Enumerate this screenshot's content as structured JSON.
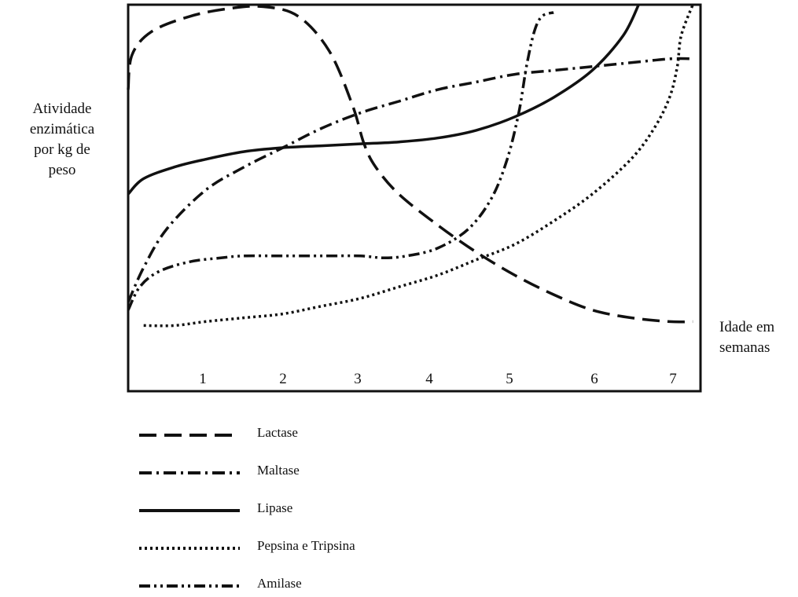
{
  "chart_data": {
    "type": "line",
    "ylabel_lines": [
      "Atividade",
      "enzimática",
      "por kg de",
      "peso"
    ],
    "xlabel_lines": [
      "Idade em",
      "semanas"
    ],
    "x_ticks": [
      "1",
      "2",
      "3",
      "4",
      "5",
      "6",
      "7"
    ],
    "xlim": [
      0,
      7.4
    ],
    "ylim": [
      0,
      1
    ],
    "legend_position": "bottom",
    "series": [
      {
        "name": "Lactase",
        "dash": "22,10",
        "points": [
          [
            0,
            0.78
          ],
          [
            0.05,
            0.87
          ],
          [
            0.3,
            0.93
          ],
          [
            0.8,
            0.97
          ],
          [
            1.3,
            0.99
          ],
          [
            1.75,
            0.995
          ],
          [
            2.2,
            0.97
          ],
          [
            2.6,
            0.88
          ],
          [
            2.9,
            0.74
          ],
          [
            3.05,
            0.64
          ],
          [
            3.2,
            0.58
          ],
          [
            3.5,
            0.51
          ],
          [
            4,
            0.43
          ],
          [
            4.5,
            0.36
          ],
          [
            5,
            0.3
          ],
          [
            5.5,
            0.25
          ],
          [
            6,
            0.21
          ],
          [
            6.5,
            0.19
          ],
          [
            7,
            0.18
          ],
          [
            7.3,
            0.18
          ]
        ]
      },
      {
        "name": "Maltase",
        "dash": "16,6,3,6",
        "points": [
          [
            0,
            0.23
          ],
          [
            0.2,
            0.32
          ],
          [
            0.5,
            0.42
          ],
          [
            1,
            0.52
          ],
          [
            1.5,
            0.58
          ],
          [
            2,
            0.63
          ],
          [
            2.5,
            0.68
          ],
          [
            3,
            0.72
          ],
          [
            3.5,
            0.75
          ],
          [
            4,
            0.78
          ],
          [
            4.5,
            0.8
          ],
          [
            5,
            0.82
          ],
          [
            5.5,
            0.83
          ],
          [
            6,
            0.84
          ],
          [
            6.5,
            0.85
          ],
          [
            7,
            0.86
          ],
          [
            7.3,
            0.86
          ]
        ]
      },
      {
        "name": "Lipase",
        "dash": "",
        "points": [
          [
            0,
            0.51
          ],
          [
            0.2,
            0.55
          ],
          [
            0.6,
            0.58
          ],
          [
            1,
            0.6
          ],
          [
            1.5,
            0.62
          ],
          [
            2,
            0.63
          ],
          [
            2.5,
            0.635
          ],
          [
            3,
            0.64
          ],
          [
            3.5,
            0.645
          ],
          [
            4,
            0.655
          ],
          [
            4.5,
            0.675
          ],
          [
            5,
            0.71
          ],
          [
            5.5,
            0.76
          ],
          [
            6,
            0.83
          ],
          [
            6.4,
            0.92
          ],
          [
            6.6,
            1
          ]
        ]
      },
      {
        "name": "Pepsina e Tripsina",
        "dash": "3,4",
        "points": [
          [
            0.2,
            0.17
          ],
          [
            0.6,
            0.17
          ],
          [
            1,
            0.18
          ],
          [
            1.5,
            0.19
          ],
          [
            2,
            0.2
          ],
          [
            2.5,
            0.22
          ],
          [
            3,
            0.24
          ],
          [
            3.5,
            0.27
          ],
          [
            4,
            0.3
          ],
          [
            4.5,
            0.34
          ],
          [
            5,
            0.38
          ],
          [
            5.5,
            0.44
          ],
          [
            6,
            0.51
          ],
          [
            6.5,
            0.6
          ],
          [
            6.8,
            0.68
          ],
          [
            7,
            0.76
          ],
          [
            7.1,
            0.84
          ],
          [
            7.15,
            0.92
          ],
          [
            7.3,
            1
          ]
        ]
      },
      {
        "name": "Amilase",
        "dash": "14,5,3,5,3,5",
        "points": [
          [
            0,
            0.21
          ],
          [
            0.15,
            0.27
          ],
          [
            0.4,
            0.31
          ],
          [
            0.8,
            0.335
          ],
          [
            1.2,
            0.345
          ],
          [
            1.5,
            0.35
          ],
          [
            2,
            0.35
          ],
          [
            2.5,
            0.35
          ],
          [
            3,
            0.35
          ],
          [
            3.3,
            0.345
          ],
          [
            3.6,
            0.35
          ],
          [
            4,
            0.37
          ],
          [
            4.4,
            0.42
          ],
          [
            4.7,
            0.5
          ],
          [
            4.9,
            0.6
          ],
          [
            5.05,
            0.72
          ],
          [
            5.15,
            0.84
          ],
          [
            5.25,
            0.93
          ],
          [
            5.35,
            0.97
          ],
          [
            5.5,
            0.98
          ]
        ]
      }
    ]
  }
}
